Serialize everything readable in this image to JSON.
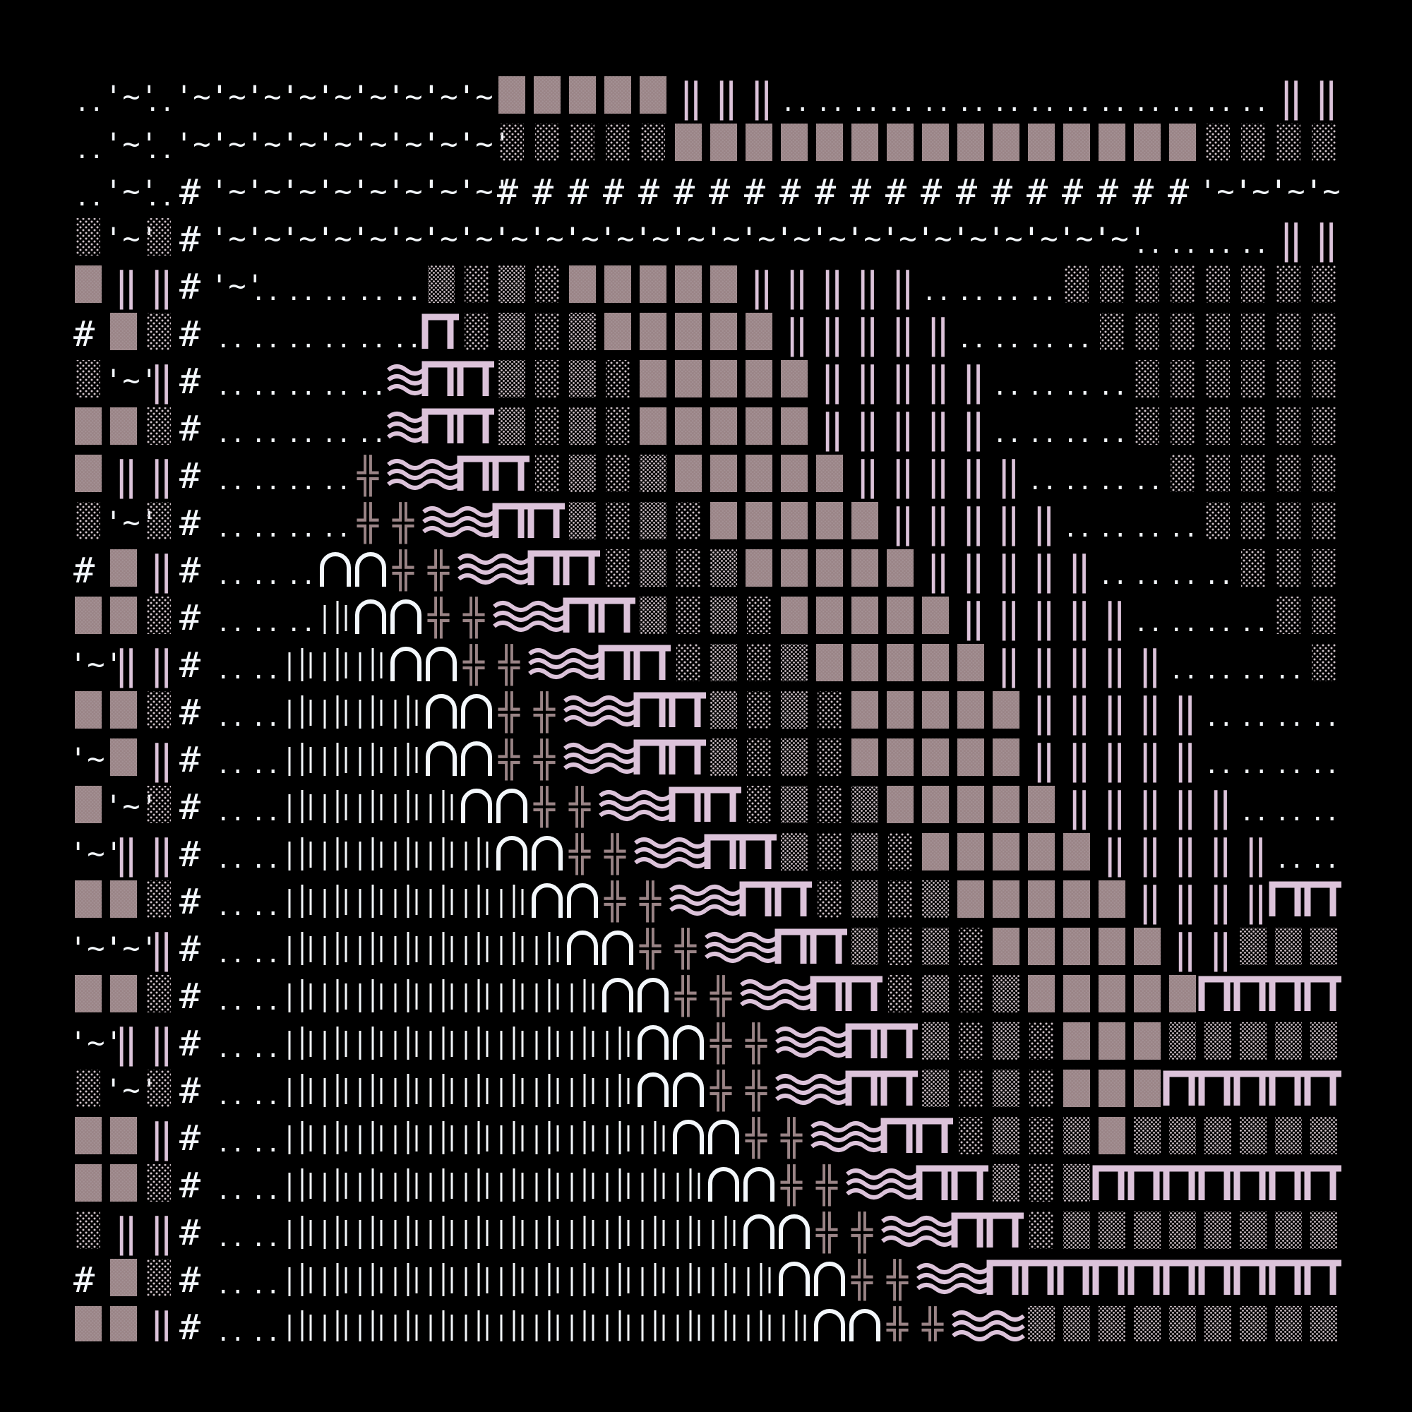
{
  "artwork": {
    "background": "#000000",
    "palette": {
      "white": "#f3f7fb",
      "pink": "#dcc3da",
      "mauve": "#9a8486",
      "dots": "#cfc2c8"
    },
    "glyphs": {
      "hash": "#",
      "tilde": "'~'",
      "dots": "..",
      "double_bar": "‖",
      "single_bar": "|",
      "cross": "╬",
      "wave": "≈"
    },
    "tile_types": [
      "dots",
      "tilde",
      "hash",
      "stipple",
      "block",
      "bars",
      "gate",
      "waves",
      "cross",
      "arch",
      "lines"
    ]
  }
}
